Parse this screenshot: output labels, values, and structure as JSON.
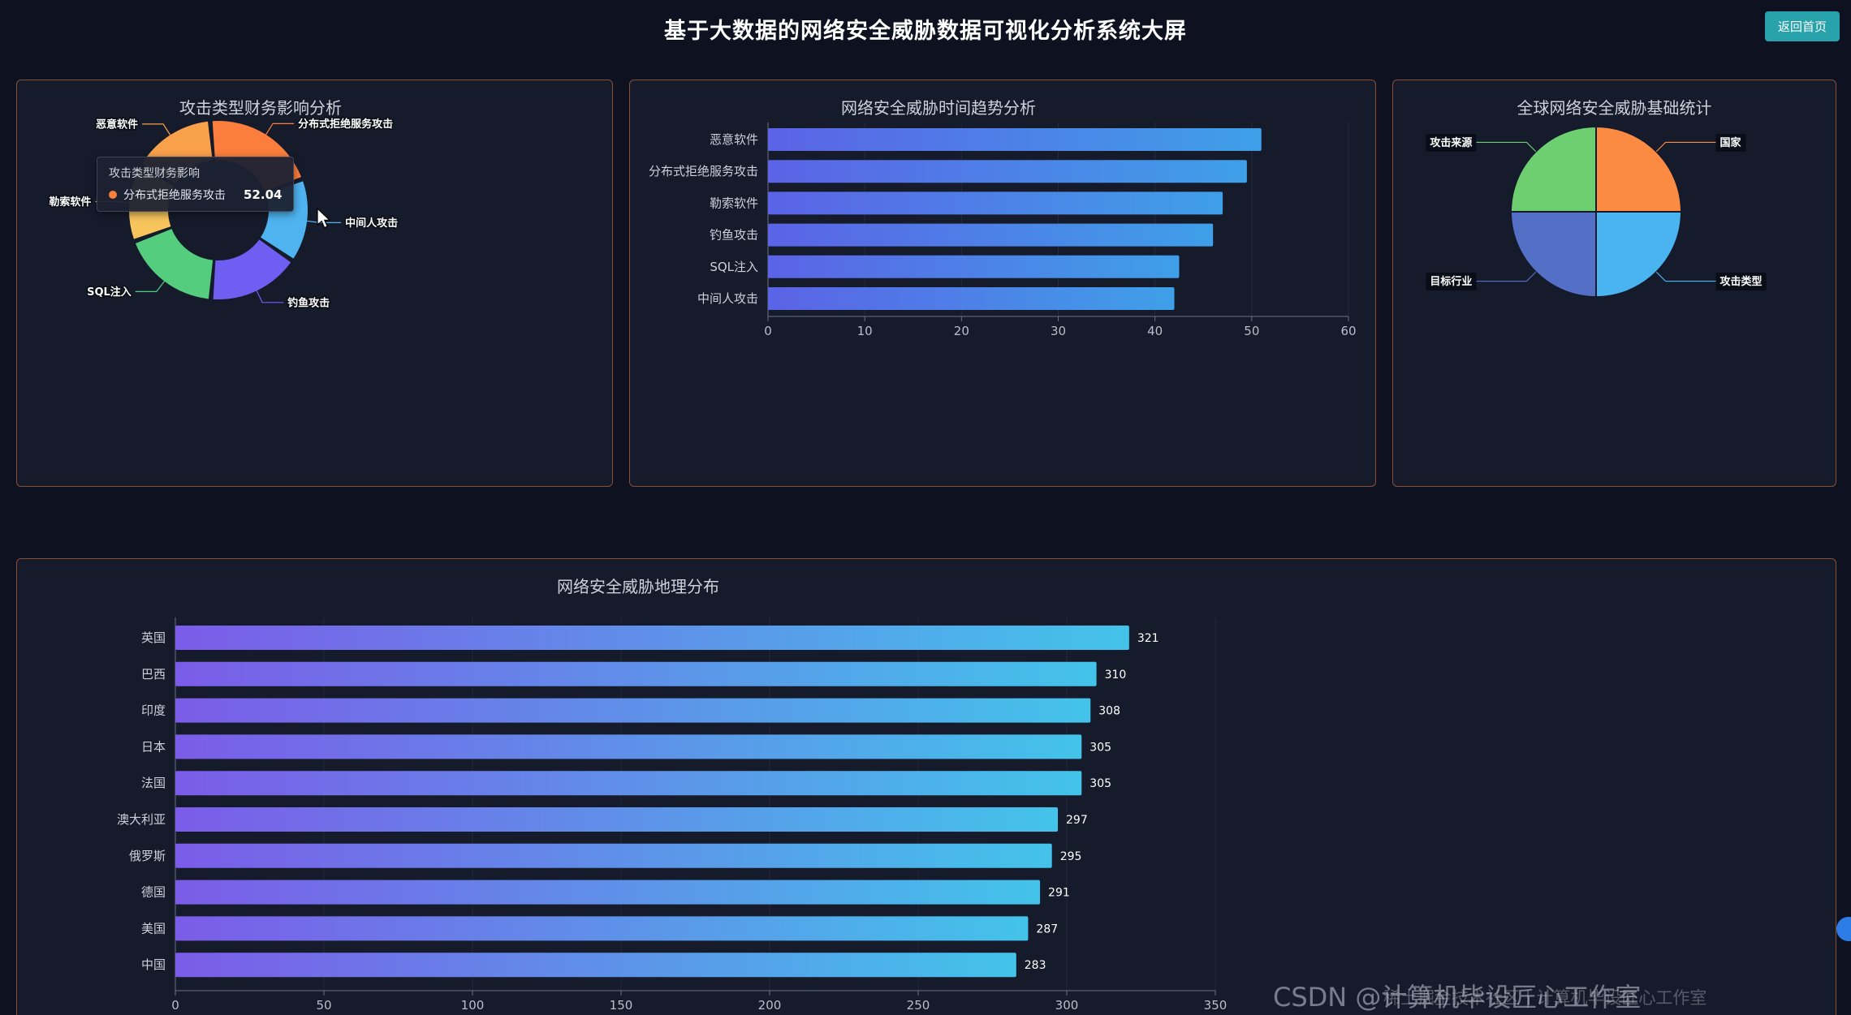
{
  "header": {
    "title": "基于大数据的网络安全威胁数据可视化分析系统大屏",
    "back_button_label": "返回首页"
  },
  "panels": {
    "financial": {
      "title": "攻击类型财务影响分析"
    },
    "trend": {
      "title": "网络安全威胁时间趋势分析"
    },
    "global": {
      "title": "全球网络安全威胁基础统计"
    },
    "geo": {
      "title": "网络安全威胁地理分布"
    }
  },
  "tooltip": {
    "title": "攻击类型财务影响",
    "series_name": "分布式拒绝服务攻击",
    "value": "52.04",
    "marker_color": "#fb7e3c"
  },
  "chart_data": [
    {
      "id": "financial_impact_donut",
      "type": "pie",
      "style": "donut",
      "title": "攻击类型财务影响分析",
      "slices": [
        {
          "label": "恶意软件",
          "value": 38,
          "color": "#f9a04a"
        },
        {
          "label": "分布式拒绝服务攻击",
          "value": 52.04,
          "color": "#fb7e3c"
        },
        {
          "label": "中间人攻击",
          "value": 38,
          "color": "#4fb3f0"
        },
        {
          "label": "钓鱼攻击",
          "value": 42,
          "color": "#6f5ef2"
        },
        {
          "label": "SQL注入",
          "value": 45,
          "color": "#55cd7f"
        },
        {
          "label": "勒索软件",
          "value": 35,
          "color": "#f8c55c"
        }
      ],
      "hovered_slice": "分布式拒绝服务攻击",
      "hovered_value": "52.04"
    },
    {
      "id": "threat_time_trend",
      "type": "bar",
      "orientation": "horizontal",
      "title": "网络安全威胁时间趋势分析",
      "categories": [
        "恶意软件",
        "分布式拒绝服务攻击",
        "勒索软件",
        "钓鱼攻击",
        "SQL注入",
        "中间人攻击"
      ],
      "values": [
        51,
        49.5,
        47,
        46,
        42.5,
        42
      ],
      "xlim": [
        0,
        60
      ],
      "xticks": [
        0,
        10,
        20,
        30,
        40,
        50,
        60
      ],
      "bar_gradient": [
        "#5b63e6",
        "#3f9fe8"
      ],
      "value_labels": false,
      "grid": true
    },
    {
      "id": "global_basic_stats",
      "type": "pie",
      "style": "full",
      "title": "全球网络安全威胁基础统计",
      "slices": [
        {
          "label": "国家",
          "value": 25,
          "color": "#fb8a43"
        },
        {
          "label": "攻击类型",
          "value": 25,
          "color": "#49b4f0"
        },
        {
          "label": "目标行业",
          "value": 25,
          "color": "#5470c6"
        },
        {
          "label": "攻击来源",
          "value": 25,
          "color": "#6dcf70"
        }
      ]
    },
    {
      "id": "geo_distribution",
      "type": "bar",
      "orientation": "horizontal",
      "title": "网络安全威胁地理分布",
      "categories": [
        "英国",
        "巴西",
        "印度",
        "日本",
        "法国",
        "澳大利亚",
        "俄罗斯",
        "德国",
        "美国",
        "中国"
      ],
      "values": [
        321,
        310,
        308,
        305,
        305,
        297,
        295,
        291,
        287,
        283
      ],
      "xlim": [
        0,
        350
      ],
      "xticks": [
        0,
        50,
        100,
        150,
        200,
        250,
        300,
        350
      ],
      "bar_gradient": [
        "#7b5ce8",
        "#43c3ea"
      ],
      "value_labels": true,
      "grid": true
    }
  ],
  "watermarks": {
    "juejin": "稀土掘金技术社区 | 计算机毕设匠心工作室",
    "csdn": "CSDN @计算机毕设匠心工作室"
  },
  "decorations": {
    "edge_dot_color": "#2e7ce6"
  }
}
